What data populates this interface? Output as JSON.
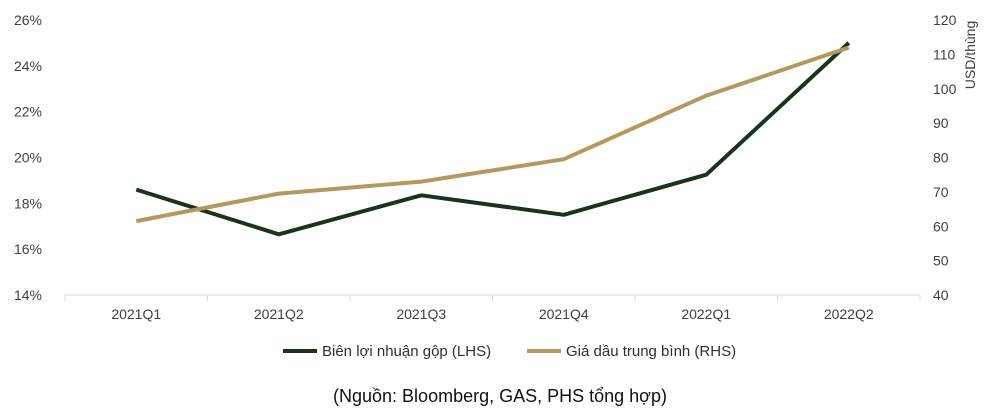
{
  "chart_data": {
    "type": "line",
    "categories": [
      "2021Q1",
      "2021Q2",
      "2021Q3",
      "2021Q4",
      "2022Q1",
      "2022Q2"
    ],
    "series": [
      {
        "name": "Biên lợi nhuận gộp (LHS)",
        "axis": "left",
        "color": "#1a3320",
        "values": [
          18.6,
          16.65,
          18.35,
          17.5,
          19.25,
          25.0
        ]
      },
      {
        "name": "Giá dầu trung bình (RHS)",
        "axis": "right",
        "color": "#b5995a",
        "values": [
          61.5,
          69.5,
          73.0,
          79.5,
          98.0,
          112.0
        ]
      }
    ],
    "y_left": {
      "min": 14,
      "max": 26,
      "ticks": [
        14,
        16,
        18,
        20,
        22,
        24,
        26
      ],
      "tick_labels": [
        "14%",
        "16%",
        "18%",
        "20%",
        "22%",
        "24%",
        "26%"
      ]
    },
    "y_right": {
      "min": 40,
      "max": 120,
      "ticks": [
        40,
        50,
        60,
        70,
        80,
        90,
        100,
        110,
        120
      ],
      "tick_labels": [
        "40",
        "50",
        "60",
        "70",
        "80",
        "90",
        "100",
        "110",
        "120"
      ],
      "label": "USD/thùng"
    },
    "grid": false,
    "legend_position": "bottom-center",
    "source": "(Nguồn: Bloomberg, GAS, PHS tổng hợp)"
  }
}
